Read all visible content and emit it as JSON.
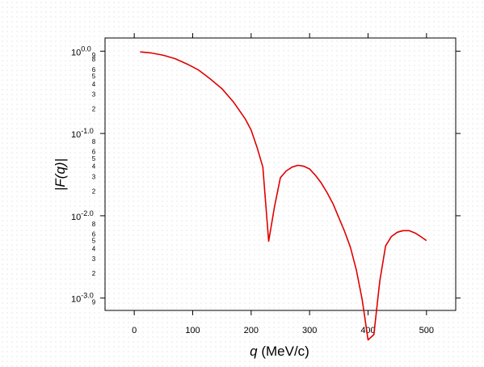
{
  "chart_data": {
    "type": "line",
    "title": "",
    "xlabel": {
      "var": "q",
      "unit": " (MeV/c)"
    },
    "ylabel": "|F(q)|",
    "xlim": [
      -50,
      550
    ],
    "ylim_log10": [
      -3.15,
      0.16
    ],
    "y_scale": "log10",
    "x_ticks": [
      0,
      100,
      200,
      300,
      400,
      500
    ],
    "x_tick_labels": [
      "0",
      "100",
      "200",
      "300",
      "400",
      "500"
    ],
    "y_major_ticks": [
      {
        "exp": 0,
        "base": "10",
        "sup": "0.0"
      },
      {
        "exp": -1,
        "base": "10",
        "sup": "-1.0"
      },
      {
        "exp": -2,
        "base": "10",
        "sup": "-2.0"
      },
      {
        "exp": -3,
        "base": "10",
        "sup": "-3.0"
      }
    ],
    "y_minor_ticks": [
      {
        "decade": 0,
        "m": 0.9,
        "label": "9"
      },
      {
        "decade": -1,
        "m": 8,
        "label": "8"
      },
      {
        "decade": -1,
        "m": 6,
        "label": "6"
      },
      {
        "decade": -1,
        "m": 5,
        "label": "5"
      },
      {
        "decade": -1,
        "m": 4,
        "label": "4"
      },
      {
        "decade": -1,
        "m": 3,
        "label": "3"
      },
      {
        "decade": -1,
        "m": 2,
        "label": "2"
      },
      {
        "decade": -2,
        "m": 8,
        "label": "8"
      },
      {
        "decade": -2,
        "m": 6,
        "label": "6"
      },
      {
        "decade": -2,
        "m": 5,
        "label": "5"
      },
      {
        "decade": -2,
        "m": 4,
        "label": "4"
      },
      {
        "decade": -2,
        "m": 3,
        "label": "3"
      },
      {
        "decade": -2,
        "m": 2,
        "label": "2"
      },
      {
        "decade": -3,
        "m": 8,
        "label": "8"
      },
      {
        "decade": -3,
        "m": 6,
        "label": "6"
      },
      {
        "decade": -3,
        "m": 5,
        "label": "5"
      },
      {
        "decade": -3,
        "m": 4,
        "label": "4"
      },
      {
        "decade": -3,
        "m": 3,
        "label": "3"
      },
      {
        "decade": -3,
        "m": 2,
        "label": "2"
      },
      {
        "decade": -4,
        "m": 9,
        "label": "9"
      }
    ],
    "grid": false,
    "series": [
      {
        "color": "#e00000",
        "x": [
          10,
          30,
          50,
          70,
          90,
          110,
          130,
          150,
          170,
          190,
          200,
          210,
          220,
          230,
          240,
          250,
          260,
          270,
          280,
          290,
          300,
          310,
          320,
          330,
          340,
          350,
          360,
          370,
          380,
          390,
          400,
          410,
          420,
          430,
          440,
          450,
          460,
          470,
          480,
          490,
          500
        ],
        "y": [
          0.98,
          0.95,
          0.89,
          0.81,
          0.7,
          0.59,
          0.46,
          0.35,
          0.24,
          0.15,
          0.11,
          0.068,
          0.039,
          0.0049,
          0.013,
          0.029,
          0.035,
          0.039,
          0.041,
          0.04,
          0.037,
          0.031,
          0.025,
          0.019,
          0.014,
          0.0095,
          0.0064,
          0.0041,
          0.0022,
          0.00095,
          0.00031,
          0.00036,
          0.0016,
          0.0043,
          0.0056,
          0.0063,
          0.0066,
          0.0066,
          0.0062,
          0.0056,
          0.005
        ]
      }
    ]
  }
}
